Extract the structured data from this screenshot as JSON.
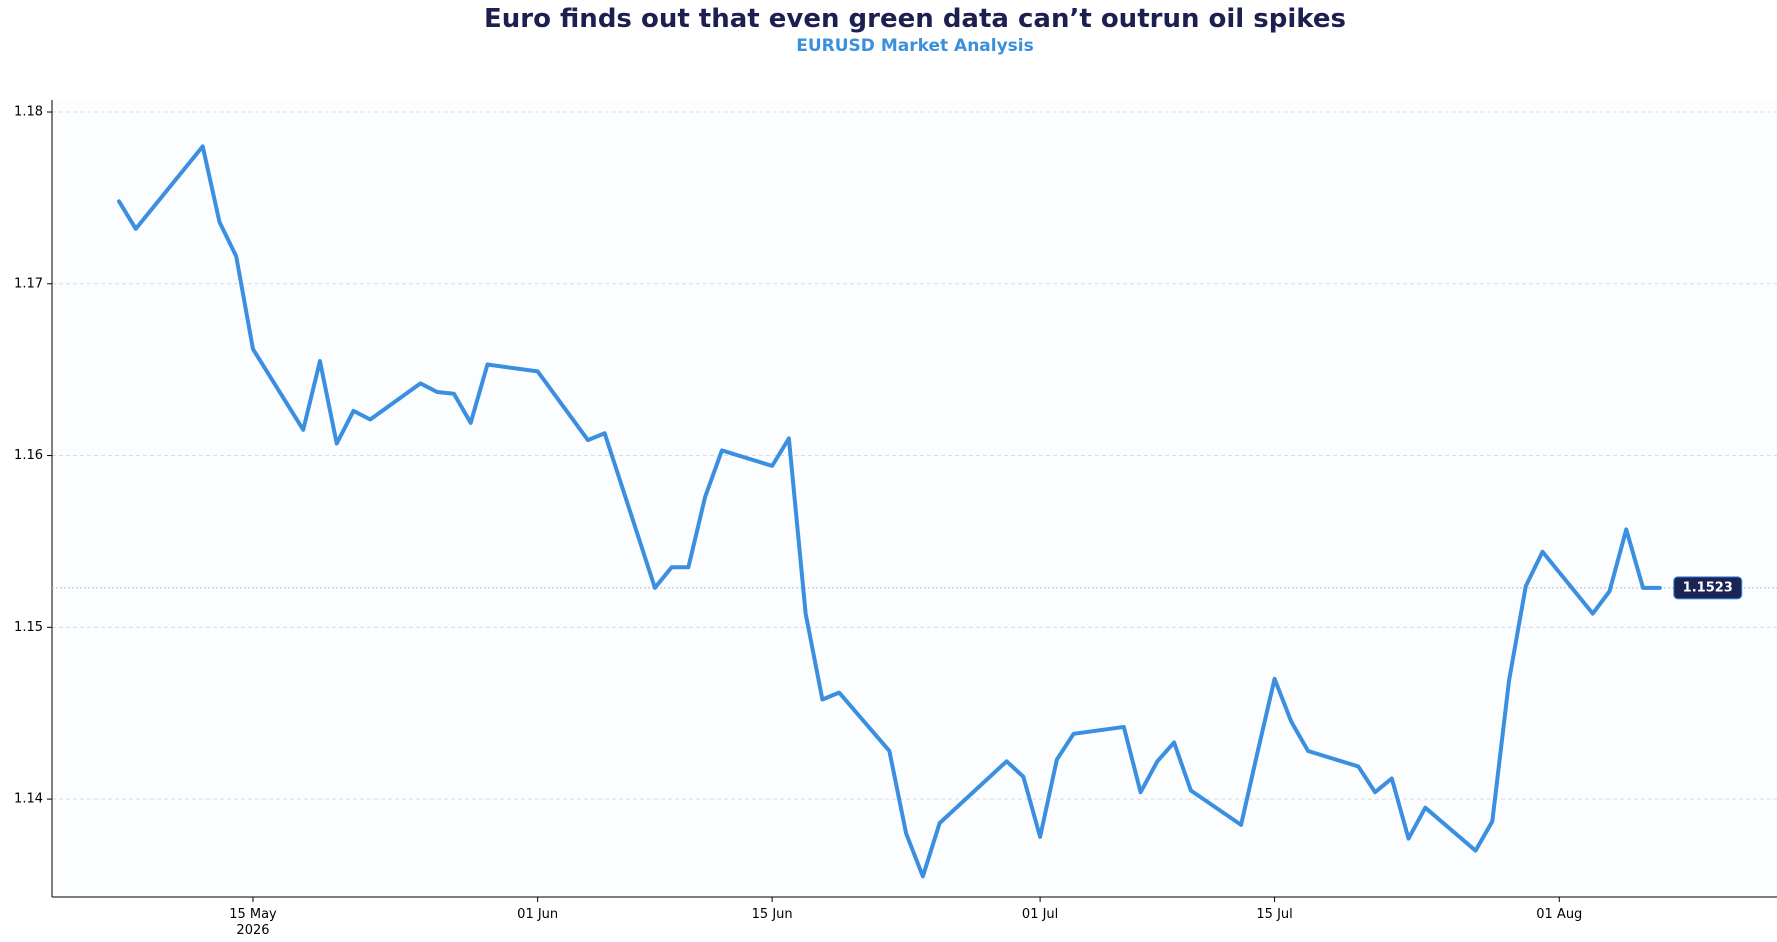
{
  "chart_data": {
    "type": "line",
    "title": "Euro finds out that even green data can’t outrun oil spikes",
    "subtitle": "EURUSD Market Analysis",
    "xlabel": "",
    "ylabel": "",
    "ylim": [
      1.1343,
      1.1807
    ],
    "y_ticks": [
      {
        "value": 1.14,
        "label": "1.14"
      },
      {
        "value": 1.15,
        "label": "1.15"
      },
      {
        "value": 1.16,
        "label": "1.16"
      },
      {
        "value": 1.17,
        "label": "1.17"
      },
      {
        "value": 1.18,
        "label": "1.18"
      }
    ],
    "x_range": [
      "2026-05-03",
      "2026-08-14"
    ],
    "x_ticks": [
      {
        "date": "2026-05-15",
        "label": "15 May",
        "sublabel": "2026"
      },
      {
        "date": "2026-06-01",
        "label": "01 Jun",
        "sublabel": ""
      },
      {
        "date": "2026-06-15",
        "label": "15 Jun",
        "sublabel": ""
      },
      {
        "date": "2026-07-01",
        "label": "01 Jul",
        "sublabel": ""
      },
      {
        "date": "2026-07-15",
        "label": "15 Jul",
        "sublabel": ""
      },
      {
        "date": "2026-08-01",
        "label": "01 Aug",
        "sublabel": ""
      }
    ],
    "grid": "horizontal-dashed",
    "last_value_label": "1.1523",
    "colors": {
      "line": "#3a8fe0",
      "title": "#1c1f4f",
      "subtitle": "#3a90dd",
      "badge": "#1c2455",
      "grid": "#d8dce2",
      "plot_bg": "#fbfdfe"
    },
    "series": [
      {
        "x": [
          "2026-05-07",
          "2026-05-08",
          "2026-05-11",
          "2026-05-12",
          "2026-05-13",
          "2026-05-14",
          "2026-05-15",
          "2026-05-18",
          "2026-05-19",
          "2026-05-20",
          "2026-05-21",
          "2026-05-22",
          "2026-05-25",
          "2026-05-26",
          "2026-05-27",
          "2026-05-28",
          "2026-05-29",
          "2026-06-01",
          "2026-06-04",
          "2026-06-05",
          "2026-06-08",
          "2026-06-09",
          "2026-06-10",
          "2026-06-11",
          "2026-06-12",
          "2026-06-15",
          "2026-06-16",
          "2026-06-17",
          "2026-06-18",
          "2026-06-19",
          "2026-06-22",
          "2026-06-23",
          "2026-06-24",
          "2026-06-25",
          "2026-06-29",
          "2026-06-30",
          "2026-07-01",
          "2026-07-02",
          "2026-07-03",
          "2026-07-06",
          "2026-07-07",
          "2026-07-08",
          "2026-07-09",
          "2026-07-10",
          "2026-07-13",
          "2026-07-14",
          "2026-07-15",
          "2026-07-16",
          "2026-07-17",
          "2026-07-20",
          "2026-07-21",
          "2026-07-22",
          "2026-07-23",
          "2026-07-24",
          "2026-07-27",
          "2026-07-28",
          "2026-07-29",
          "2026-07-30",
          "2026-07-31",
          "2026-08-03",
          "2026-08-04",
          "2026-08-05",
          "2026-08-06",
          "2026-08-07"
        ],
        "values": [
          1.1748,
          1.1732,
          1.1768,
          1.178,
          1.1736,
          1.1716,
          1.1662,
          1.1615,
          1.1655,
          1.1607,
          1.1626,
          1.1621,
          1.1642,
          1.1637,
          1.1636,
          1.1619,
          1.1653,
          1.1649,
          1.1609,
          1.1613,
          1.1523,
          1.1535,
          1.1535,
          1.1576,
          1.1603,
          1.1594,
          1.161,
          1.1508,
          1.1458,
          1.1462,
          1.1428,
          1.138,
          1.1355,
          1.1386,
          1.1422,
          1.1413,
          1.1378,
          1.1423,
          1.1438,
          1.1442,
          1.1404,
          1.1422,
          1.1433,
          1.1405,
          1.1385,
          1.1428,
          1.147,
          1.1445,
          1.1428,
          1.1419,
          1.1404,
          1.1412,
          1.1377,
          1.1395,
          1.137,
          1.1387,
          1.1469,
          1.1524,
          1.1544,
          1.1508,
          1.1521,
          1.1557,
          1.1523,
          1.1523
        ]
      }
    ]
  }
}
